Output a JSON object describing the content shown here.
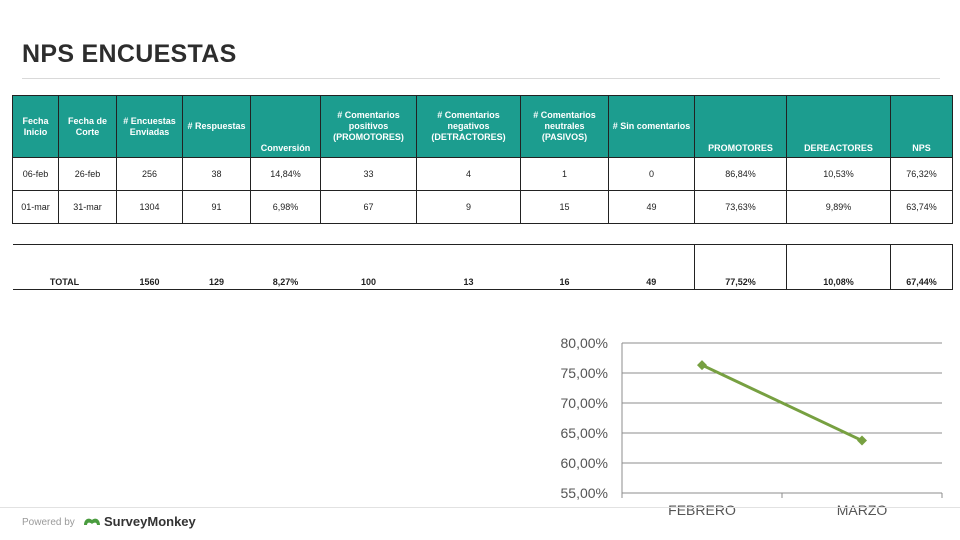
{
  "page": {
    "title": "NPS ENCUESTAS"
  },
  "table": {
    "headers": [
      "Fecha Inicio",
      "Fecha de Corte",
      "# Encuestas Enviadas",
      "# Respuestas",
      "Conversión",
      "# Comentarios positivos (PROMOTORES)",
      "# Comentarios negativos (DETRACTORES)",
      "# Comentarios neutrales (PASIVOS)",
      "# Sin comentarios",
      "PROMOTORES",
      "DEREACTORES",
      "NPS"
    ],
    "rows": [
      [
        "06-feb",
        "26-feb",
        "256",
        "38",
        "14,84%",
        "33",
        "4",
        "1",
        "0",
        "86,84%",
        "10,53%",
        "76,32%"
      ],
      [
        "01-mar",
        "31-mar",
        "1304",
        "91",
        "6,98%",
        "67",
        "9",
        "15",
        "49",
        "73,63%",
        "9,89%",
        "63,74%"
      ]
    ],
    "total": [
      "TOTAL",
      "1560",
      "129",
      "8,27%",
      "100",
      "13",
      "16",
      "49",
      "77,52%",
      "10,08%",
      "67,44%"
    ]
  },
  "chart_data": {
    "type": "line",
    "categories": [
      "FEBRERO",
      "MARZO"
    ],
    "series": [
      {
        "values": [
          76.32,
          63.74
        ],
        "color": "#77a041"
      }
    ],
    "ylim": [
      55,
      80
    ],
    "yticks": [
      "55,00%",
      "60,00%",
      "65,00%",
      "70,00%",
      "75,00%",
      "80,00%"
    ],
    "ytick_values": [
      55,
      60,
      65,
      70,
      75,
      80
    ],
    "grid": true,
    "title": "",
    "xlabel": "",
    "ylabel": ""
  },
  "footer": {
    "powered_by": "Powered by",
    "brand": "SurveyMonkey"
  }
}
